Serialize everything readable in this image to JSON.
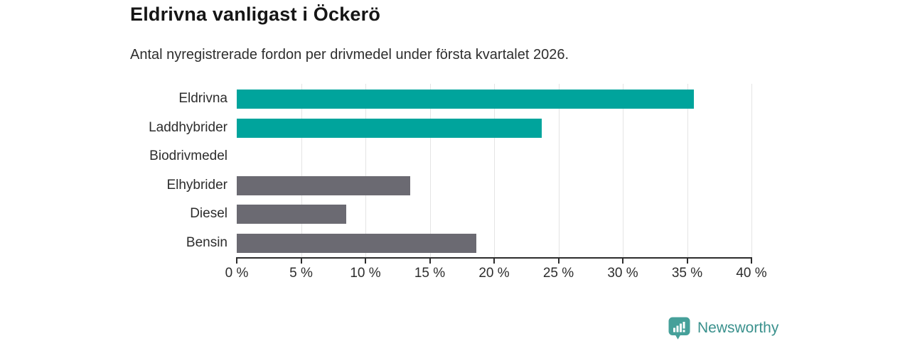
{
  "chart_data": {
    "type": "bar",
    "orientation": "horizontal",
    "title": "Eldrivna vanligast i Öckerö",
    "subtitle": "Antal nyregistrerade fordon per drivmedel under första kvartalet 2026.",
    "categories": [
      "Eldrivna",
      "Laddhybrider",
      "Biodrivmedel",
      "Elhybrider",
      "Diesel",
      "Bensin"
    ],
    "values": [
      35.5,
      23.7,
      0,
      13.5,
      8.5,
      18.6
    ],
    "unit": "%",
    "xlabel": "",
    "ylabel": "",
    "xlim": [
      0,
      40
    ],
    "x_ticks": [
      0,
      5,
      10,
      15,
      20,
      25,
      30,
      35,
      40
    ],
    "x_tick_labels": [
      "0 %",
      "5 %",
      "10 %",
      "15 %",
      "20 %",
      "25 %",
      "30 %",
      "35 %",
      "40 %"
    ],
    "grid": true,
    "grid_direction": "vertical",
    "legend": false,
    "bar_colors": [
      "#00a49c",
      "#00a49c",
      "#6b6a72",
      "#6b6a72",
      "#6b6a72",
      "#6b6a72"
    ],
    "highlight_color": "#00a49c",
    "base_color": "#6b6a72",
    "gridline_color": "#e4e4e4",
    "axis_color": "#2d2d2d"
  },
  "footer": {
    "brand": "Newsworthy",
    "brand_color": "#3a918d",
    "icon": "newsworthy-speech-bubble-chart-icon",
    "icon_color": "#46a09a",
    "icon_glyph_color": "#ffffff"
  }
}
